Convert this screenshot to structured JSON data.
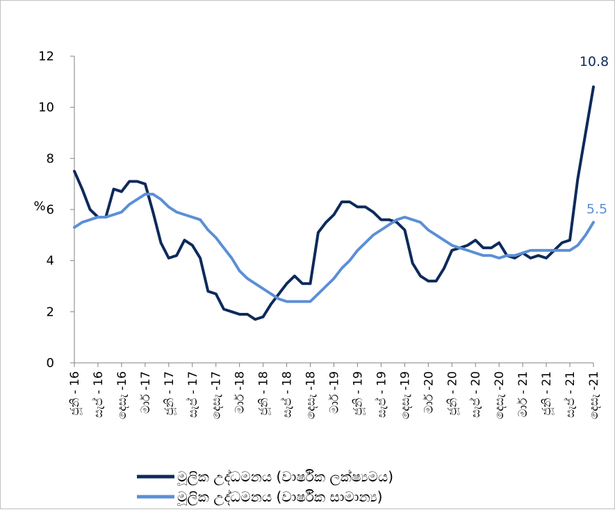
{
  "chart_data": {
    "type": "line",
    "ylabel": "%",
    "xlabel": "",
    "ylim": [
      0,
      12
    ],
    "yticks": [
      0,
      2,
      4,
      6,
      8,
      10,
      12
    ],
    "grid": false,
    "legend_position": "bottom-center",
    "x_tick_labels": [
      "ජූනි - 16",
      "සැප් - 16",
      "දෙසැ -16",
      "මාර් -17",
      "ජූනි - 17",
      "සැප් - 17",
      "දෙසැ -17",
      "මාර් -18",
      "ජූනි - 18",
      "සැප් - 18",
      "දෙසැ -18",
      "මාර් -19",
      "ජූනි - 19",
      "සැප් - 19",
      "දෙසැ -19",
      "මාර් -20",
      "ජූනි - 20",
      "සැප් - 20",
      "දෙසැ -20",
      "මාර් - 21",
      "ජූනි - 21",
      "සැප් - 21",
      "දෙසැ -21"
    ],
    "series": [
      {
        "name": "මූලික උද්ධමනය (වාර්ෂික ලක්ෂ්‍යමය)",
        "color": "#0d2a5a",
        "end_label": "10.8",
        "values": [
          7.5,
          6.8,
          6.0,
          5.7,
          5.7,
          6.8,
          6.7,
          7.1,
          7.1,
          7.0,
          5.9,
          4.7,
          4.1,
          4.2,
          4.8,
          4.6,
          4.1,
          2.8,
          2.7,
          2.1,
          2.0,
          1.9,
          1.9,
          1.7,
          1.8,
          2.3,
          2.7,
          3.1,
          3.4,
          3.1,
          3.1,
          5.1,
          5.5,
          5.8,
          6.3,
          6.3,
          6.1,
          6.1,
          5.9,
          5.6,
          5.6,
          5.5,
          5.2,
          3.9,
          3.4,
          3.2,
          3.2,
          3.7,
          4.4,
          4.5,
          4.6,
          4.8,
          4.5,
          4.5,
          4.7,
          4.2,
          4.1,
          4.3,
          4.1,
          4.2,
          4.1,
          4.4,
          4.7,
          4.8,
          7.2,
          9.0,
          10.8
        ]
      },
      {
        "name": "මූලික උද්ධමනය (වාර්ෂික සාමාන්‍ය)",
        "color": "#5b8fd6",
        "end_label": "5.5",
        "values": [
          5.3,
          5.5,
          5.6,
          5.7,
          5.7,
          5.8,
          5.9,
          6.2,
          6.4,
          6.6,
          6.6,
          6.4,
          6.1,
          5.9,
          5.8,
          5.7,
          5.6,
          5.2,
          4.9,
          4.5,
          4.1,
          3.6,
          3.3,
          3.1,
          2.9,
          2.7,
          2.5,
          2.4,
          2.4,
          2.4,
          2.4,
          2.7,
          3.0,
          3.3,
          3.7,
          4.0,
          4.4,
          4.7,
          5.0,
          5.2,
          5.4,
          5.6,
          5.7,
          5.6,
          5.5,
          5.2,
          5.0,
          4.8,
          4.6,
          4.5,
          4.4,
          4.3,
          4.2,
          4.2,
          4.1,
          4.2,
          4.2,
          4.3,
          4.4,
          4.4,
          4.4,
          4.4,
          4.4,
          4.4,
          4.6,
          5.0,
          5.5
        ]
      }
    ]
  }
}
